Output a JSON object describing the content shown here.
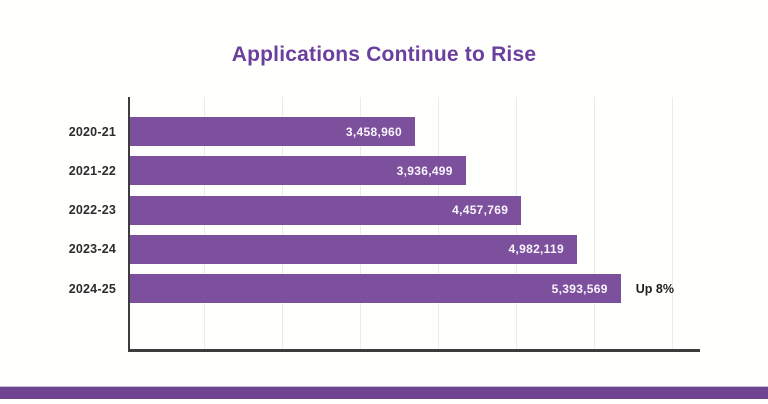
{
  "title": "Applications Continue to Rise",
  "colors": {
    "bar": "#7d509e",
    "title": "#6b3f9e",
    "footer_bar": "#6f4491",
    "axis": "#3c3c3c",
    "gridline": "#ebebeb",
    "category_label": "#2d2d2d",
    "value_label": "#f8f5fb",
    "annotation": "#1e1e1e"
  },
  "chart_data": {
    "type": "bar",
    "orientation": "horizontal",
    "title": "Applications Continue to Rise",
    "categories": [
      "2020-21",
      "2021-22",
      "2022-23",
      "2023-24",
      "2024-25"
    ],
    "values": [
      3458960,
      3936499,
      4457769,
      4982119,
      5393569
    ],
    "value_labels": [
      "3,458,960",
      "3,936,499",
      "4,457,769",
      "4,982,119",
      "5,393,569"
    ],
    "annotations": [
      {
        "index": 4,
        "text": "Up 8%"
      }
    ],
    "xlim": [
      778800,
      6110700
    ],
    "grid": true,
    "gridline_count": 7,
    "legend": false,
    "value_labels_position": "inside-end",
    "bar_color": "#7d509e"
  }
}
